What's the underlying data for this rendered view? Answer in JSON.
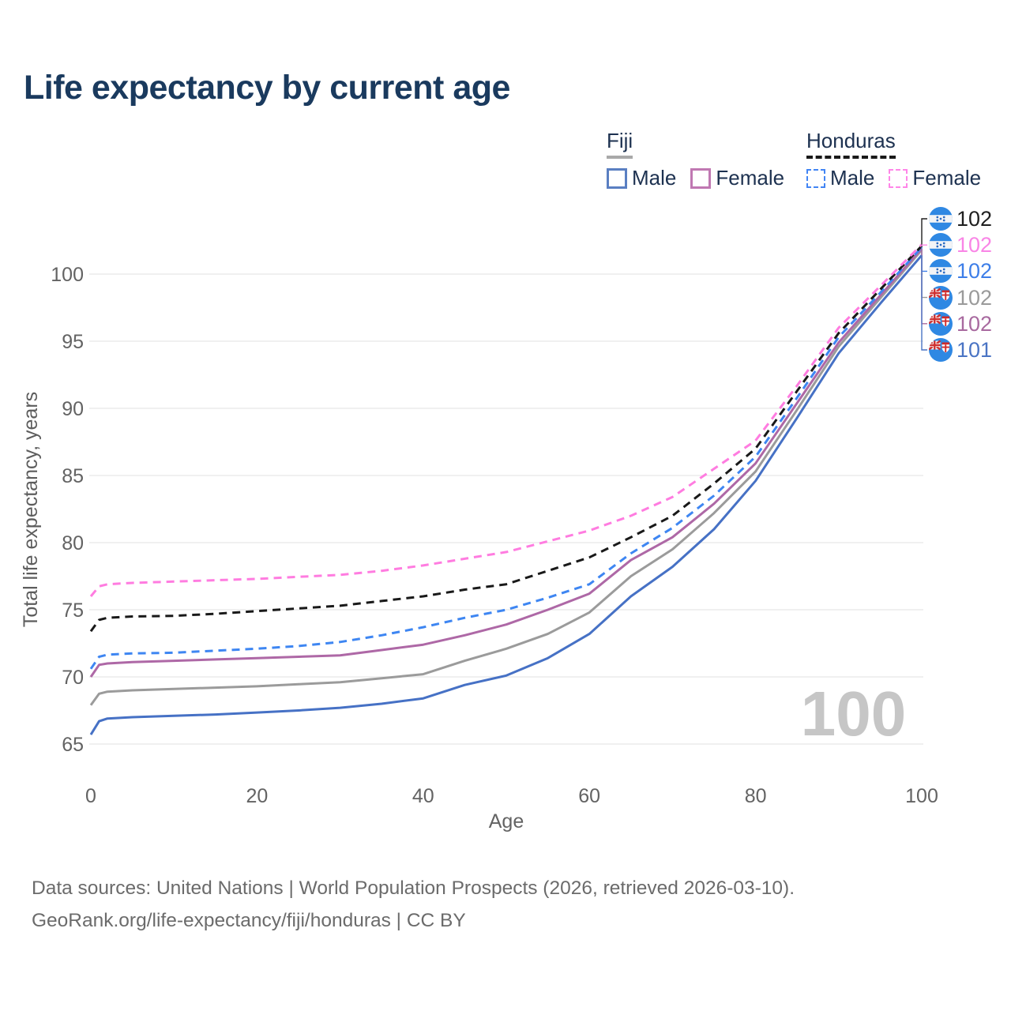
{
  "title": "Life expectancy by current age",
  "watermark": "100",
  "legend": {
    "groups": [
      {
        "country": "Fiji",
        "underline_color": "#a9a9a9",
        "underline_style": "solid",
        "items": [
          {
            "label": "Male",
            "color": "#5a7fc2"
          },
          {
            "label": "Female",
            "color": "#c078b2"
          }
        ]
      },
      {
        "country": "Honduras",
        "underline_color": "#191919",
        "underline_style": "dashed",
        "items": [
          {
            "label": "Male",
            "color": "#4285f4"
          },
          {
            "label": "Female",
            "color": "#ff86e8"
          }
        ]
      }
    ]
  },
  "chart_data": {
    "type": "line",
    "title": "Life expectancy by current age",
    "xlabel": "Age",
    "ylabel": "Total life expectancy, years",
    "xlim": [
      0,
      100
    ],
    "ylim": [
      65,
      102.5
    ],
    "x_ticks": [
      0,
      20,
      40,
      60,
      80,
      100
    ],
    "y_ticks": [
      65,
      70,
      75,
      80,
      85,
      90,
      95,
      100
    ],
    "grid": "horizontal",
    "legend_position": "top-right",
    "x": [
      0,
      1,
      2,
      5,
      10,
      15,
      20,
      25,
      30,
      35,
      40,
      45,
      50,
      55,
      60,
      65,
      70,
      75,
      80,
      85,
      90,
      95,
      100
    ],
    "series": [
      {
        "name": "Fiji Male",
        "country": "Fiji",
        "sex": "Male",
        "color": "#4671c5",
        "dash": false,
        "end_label": "101",
        "values": [
          65.7,
          66.7,
          66.9,
          67.0,
          67.1,
          67.2,
          67.35,
          67.5,
          67.7,
          68.0,
          68.4,
          69.4,
          70.1,
          71.4,
          73.2,
          76.0,
          78.2,
          81.0,
          84.6,
          89.3,
          94.1,
          97.8,
          101.4
        ]
      },
      {
        "name": "Fiji",
        "country": "Fiji",
        "sex": "Both",
        "color": "#9b9b9b",
        "dash": false,
        "end_label": "102",
        "values": [
          67.9,
          68.75,
          68.9,
          69.0,
          69.1,
          69.2,
          69.3,
          69.45,
          69.6,
          69.9,
          70.2,
          71.2,
          72.1,
          73.2,
          74.8,
          77.5,
          79.5,
          82.2,
          85.3,
          89.9,
          94.6,
          98.2,
          101.8
        ]
      },
      {
        "name": "Fiji Female",
        "country": "Fiji",
        "sex": "Female",
        "color": "#ae68a6",
        "dash": false,
        "end_label": "102",
        "values": [
          70.0,
          70.9,
          71.0,
          71.1,
          71.2,
          71.3,
          71.4,
          71.5,
          71.6,
          72.0,
          72.4,
          73.1,
          73.9,
          75.0,
          76.2,
          78.7,
          80.4,
          82.9,
          85.9,
          90.4,
          94.9,
          98.4,
          101.9
        ]
      },
      {
        "name": "Honduras Male",
        "country": "Honduras",
        "sex": "Male",
        "color": "#3e86f2",
        "dash": true,
        "end_label": "102",
        "values": [
          70.6,
          71.5,
          71.65,
          71.75,
          71.8,
          71.95,
          72.1,
          72.3,
          72.6,
          73.1,
          73.7,
          74.4,
          75.0,
          75.9,
          76.9,
          79.2,
          81.1,
          83.5,
          86.4,
          90.8,
          95.3,
          98.6,
          102.0
        ]
      },
      {
        "name": "Honduras",
        "country": "Honduras",
        "sex": "Both",
        "color": "#191919",
        "dash": true,
        "end_label": "102",
        "values": [
          73.4,
          74.25,
          74.4,
          74.5,
          74.55,
          74.7,
          74.9,
          75.1,
          75.3,
          75.65,
          76.0,
          76.5,
          76.9,
          77.9,
          78.9,
          80.4,
          82.0,
          84.4,
          87.0,
          91.3,
          95.6,
          98.85,
          102.1
        ]
      },
      {
        "name": "Honduras Female",
        "country": "Honduras",
        "sex": "Female",
        "color": "#ff7ce0",
        "dash": true,
        "end_label": "102",
        "values": [
          76.0,
          76.75,
          76.9,
          77.0,
          77.1,
          77.2,
          77.3,
          77.45,
          77.6,
          77.9,
          78.3,
          78.8,
          79.3,
          80.1,
          80.9,
          82.0,
          83.4,
          85.5,
          87.6,
          91.7,
          96.0,
          99.1,
          102.2
        ]
      }
    ]
  },
  "right_labels": [
    {
      "value": "102",
      "flag": "honduras",
      "series": "Honduras",
      "color": "#1f1f1f",
      "end_value": 102.1
    },
    {
      "value": "102",
      "flag": "honduras",
      "series": "Honduras Female",
      "color": "#f985e6",
      "end_value": 102.2
    },
    {
      "value": "102",
      "flag": "honduras",
      "series": "Honduras Male",
      "color": "#3d7ee8",
      "end_value": 102.0
    },
    {
      "value": "102",
      "flag": "fiji",
      "series": "Fiji",
      "color": "#9a9a9a",
      "end_value": 101.8
    },
    {
      "value": "102",
      "flag": "fiji",
      "series": "Fiji Female",
      "color": "#a8699f",
      "end_value": 101.9
    },
    {
      "value": "101",
      "flag": "fiji",
      "series": "Fiji Male",
      "color": "#4a74c4",
      "end_value": 101.4
    }
  ],
  "footer": {
    "line1": "Data sources: United Nations | World Population Prospects (2026, retrieved 2026-03-10).",
    "line2": "GeoRank.org/life-expectancy/fiji/honduras | CC BY"
  }
}
